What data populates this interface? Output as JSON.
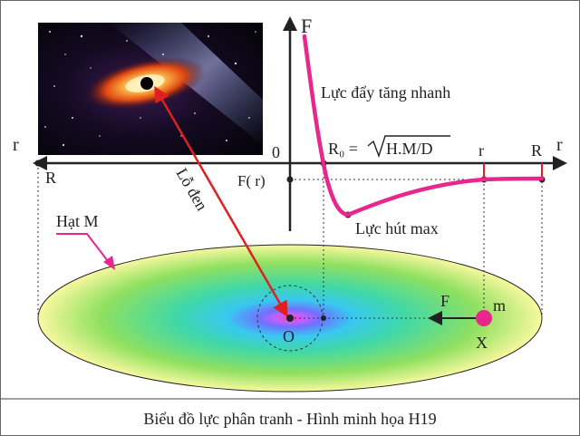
{
  "labels": {
    "F_axis": "F",
    "r_left": "r",
    "r_right": "r",
    "R_left": "R",
    "R_right": "R",
    "r_mid": "r",
    "zero": "0",
    "F_of_r": "F( r)",
    "R0_label": "R₀ =",
    "R0_formula": "H.M/D",
    "repulsion": "Lực đẩy tăng nhanh",
    "attraction_max": "Lực hút max",
    "black_hole": "Lỗ đen",
    "particle_M": "Hạt M",
    "force_F": "F",
    "mass_m": "m",
    "center_O": "O",
    "point_X": "X"
  },
  "caption": "Biểu đồ lực phân tranh - Hình minh họa H19",
  "colors": {
    "curve": "#e8278e",
    "marker_red": "#e02020",
    "particle": "#e8278e",
    "ellipse_edge": "#f0f090",
    "ellipse_mid": "#40d8a0",
    "ellipse_inner": "#38c8f0",
    "core": "#ff3db4"
  }
}
